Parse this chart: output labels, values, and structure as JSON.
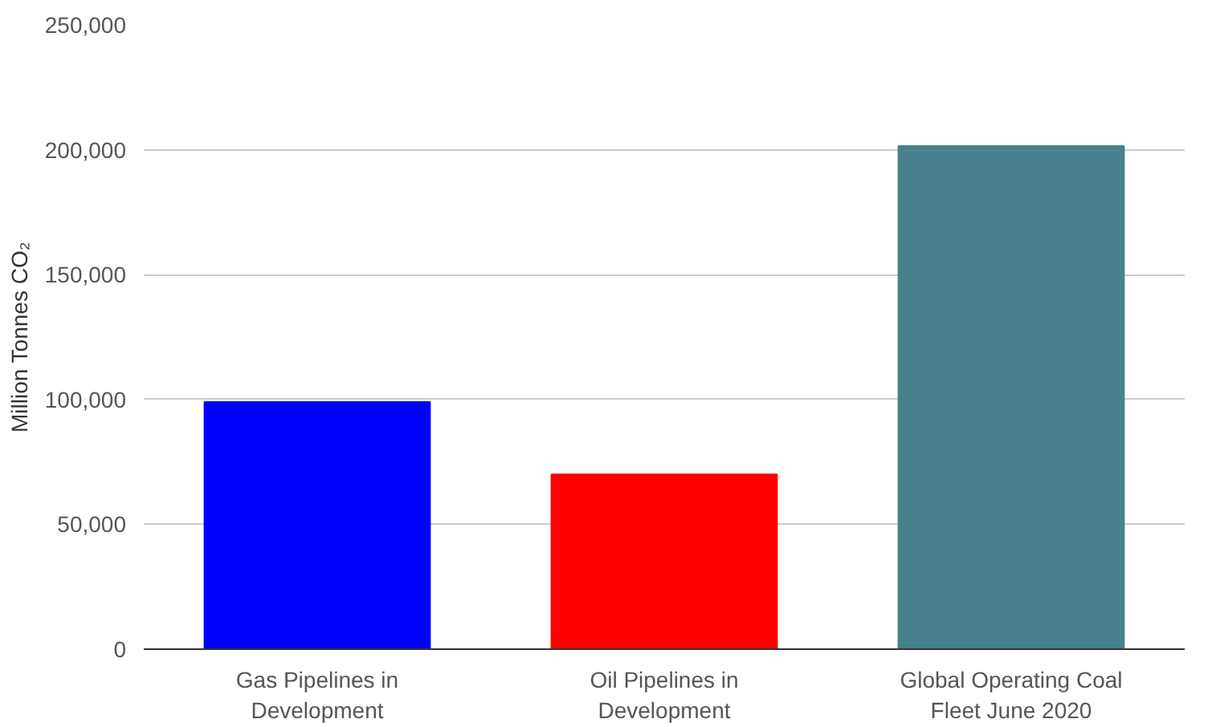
{
  "chart_data": {
    "type": "bar",
    "ylabel": "Million Tonnes CO₂",
    "categories": [
      "Gas Pipelines in Development",
      "Oil Pipelines in Development",
      "Global Operating Coal Fleet June 2020"
    ],
    "values": [
      99000,
      70000,
      201500
    ],
    "colors": [
      "#0000ff",
      "#ff0000",
      "#46818d"
    ],
    "ylim": [
      0,
      250000
    ],
    "yticks": [
      {
        "value": 0,
        "label": "0"
      },
      {
        "value": 50000,
        "label": "50,000"
      },
      {
        "value": 100000,
        "label": "100,000"
      },
      {
        "value": 150000,
        "label": "150,000"
      },
      {
        "value": 200000,
        "label": "200,000"
      },
      {
        "value": 250000,
        "label": "250,000"
      }
    ],
    "grid": "y"
  }
}
